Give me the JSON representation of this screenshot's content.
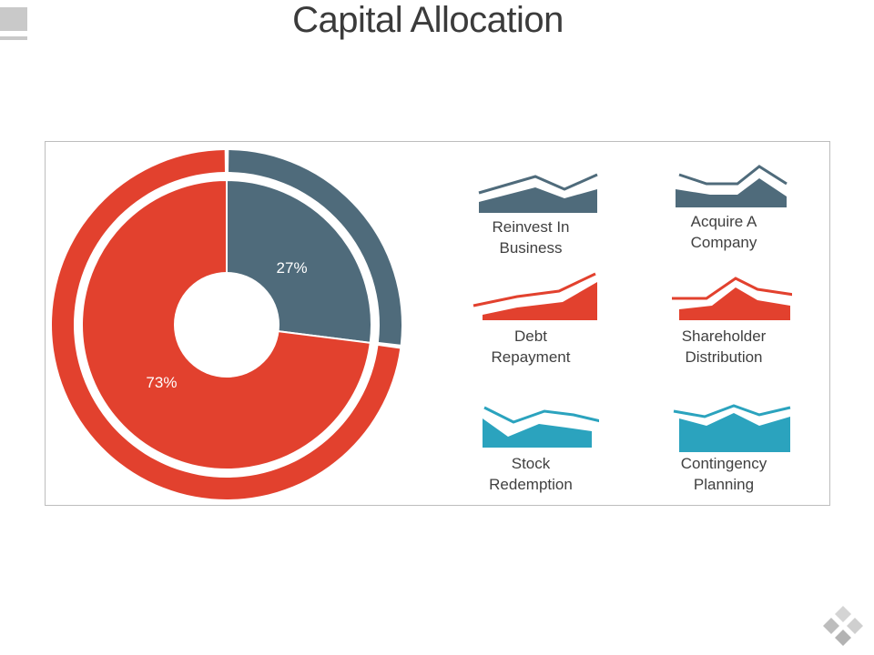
{
  "title": "Capital Allocation",
  "chart_data": {
    "type": "pie",
    "title": "Capital Allocation",
    "slices": [
      {
        "label": "27%",
        "value": 27,
        "color": "#4f6b7b"
      },
      {
        "label": "73%",
        "value": 73,
        "color": "#e2412e"
      }
    ]
  },
  "items": [
    {
      "line1": "Reinvest In",
      "line2": "Business",
      "icon": "line-area-trend-icon",
      "color": "#4f6b7b"
    },
    {
      "line1": "Acquire A",
      "line2": "Company",
      "icon": "line-area-trend-icon",
      "color": "#4f6b7b"
    },
    {
      "line1": "Debt",
      "line2": "Repayment",
      "icon": "line-area-trend-icon",
      "color": "#e2412e"
    },
    {
      "line1": "Shareholder",
      "line2": "Distribution",
      "icon": "line-area-trend-icon",
      "color": "#e2412e"
    },
    {
      "line1": "Stock",
      "line2": "Redemption",
      "icon": "line-area-trend-icon",
      "color": "#2ba3be"
    },
    {
      "line1": "Contingency",
      "line2": "Planning",
      "icon": "line-area-trend-icon",
      "color": "#2ba3be"
    }
  ],
  "colors": {
    "slate": "#4f6b7b",
    "red": "#e2412e",
    "teal": "#2ba3be",
    "border": "#bdbdbd"
  }
}
